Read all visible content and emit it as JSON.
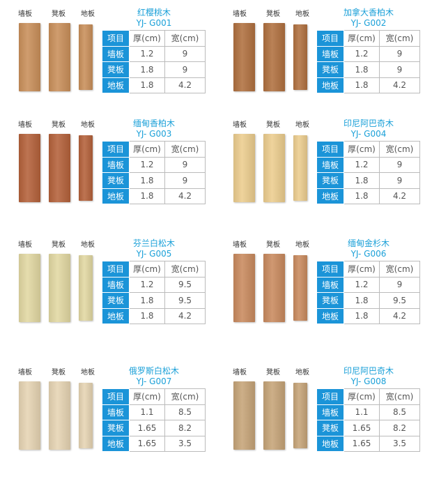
{
  "labels": {
    "wall": "墙板",
    "stool": "凳板",
    "floor": "地板"
  },
  "table_header": {
    "item": "项目",
    "thickness": "厚(cm)",
    "width": "宽(cm)"
  },
  "products": [
    {
      "name": "红樱桃木",
      "code": "YJ- G001",
      "color": "#c98f5a",
      "rows": [
        [
          "墙板",
          "1.2",
          "9"
        ],
        [
          "凳板",
          "1.8",
          "9"
        ],
        [
          "地板",
          "1.8",
          "4.2"
        ]
      ]
    },
    {
      "name": "加拿大香柏木",
      "code": "YJ- G002",
      "color": "#b0703f",
      "rows": [
        [
          "墙板",
          "1.2",
          "9"
        ],
        [
          "凳板",
          "1.8",
          "9"
        ],
        [
          "地板",
          "1.8",
          "4.2"
        ]
      ]
    },
    {
      "name": "缅甸香柏木",
      "code": "YJ- G003",
      "color": "#b4613a",
      "rows": [
        [
          "墙板",
          "1.2",
          "9"
        ],
        [
          "凳板",
          "1.8",
          "9"
        ],
        [
          "地板",
          "1.8",
          "4.2"
        ]
      ]
    },
    {
      "name": "印尼阿巴奇木",
      "code": "YJ- G004",
      "color": "#eccd8e",
      "rows": [
        [
          "墙板",
          "1.2",
          "9"
        ],
        [
          "凳板",
          "1.8",
          "9"
        ],
        [
          "地板",
          "1.8",
          "4.2"
        ]
      ]
    },
    {
      "name": "芬兰白松木",
      "code": "YJ- G005",
      "color": "#e2d8a2",
      "rows": [
        [
          "墙板",
          "1.2",
          "9.5"
        ],
        [
          "凳板",
          "1.8",
          "9.5"
        ],
        [
          "地板",
          "1.8",
          "4.2"
        ]
      ]
    },
    {
      "name": "缅甸金杉木",
      "code": "YJ- G006",
      "color": "#c98a5e",
      "rows": [
        [
          "墙板",
          "1.2",
          "9"
        ],
        [
          "凳板",
          "1.8",
          "9.5"
        ],
        [
          "地板",
          "1.8",
          "4.2"
        ]
      ]
    },
    {
      "name": "俄罗斯白松木",
      "code": "YJ- G007",
      "color": "#e6d4b3",
      "rows": [
        [
          "墙板",
          "1.1",
          "8.5"
        ],
        [
          "凳板",
          "1.65",
          "8.2"
        ],
        [
          "地板",
          "1.65",
          "3.5"
        ]
      ]
    },
    {
      "name": "印尼阿巴奇木",
      "code": "YJ- G008",
      "color": "#c6a478",
      "rows": [
        [
          "墙板",
          "1.1",
          "8.5"
        ],
        [
          "凳板",
          "1.65",
          "8.2"
        ],
        [
          "地板",
          "1.65",
          "3.5"
        ]
      ]
    }
  ],
  "accent": "#1b94d8"
}
